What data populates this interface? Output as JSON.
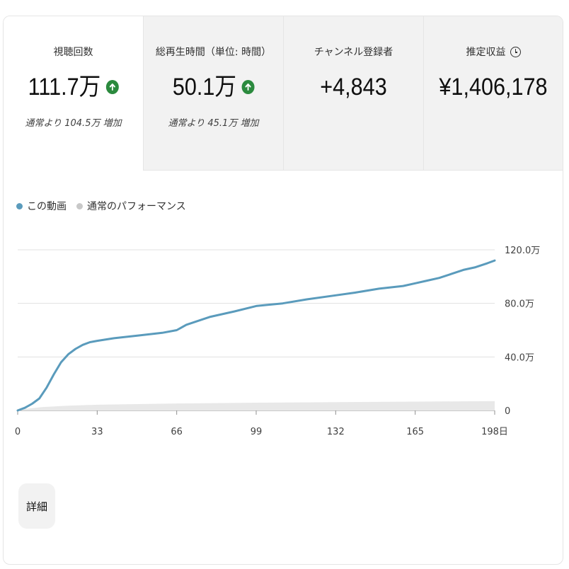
{
  "metrics": [
    {
      "label": "視聴回数",
      "value": "111.7万",
      "sub": "通常より 104.5万 増加",
      "trend": "up"
    },
    {
      "label": "総再生時間（単位: 時間）",
      "value": "50.1万",
      "sub": "通常より 45.1万 増加",
      "trend": "up"
    },
    {
      "label": "チャンネル登録者",
      "value": "+4,843",
      "sub": ""
    },
    {
      "label": "推定収益",
      "value": "¥1,406,178",
      "sub": "",
      "icon": "clock-icon"
    }
  ],
  "legend": [
    {
      "label": "この動画",
      "color": "#5a9bbc"
    },
    {
      "label": "通常のパフォーマンス",
      "color": "#c8c8c8"
    }
  ],
  "detail_label": "詳細",
  "colors": {
    "up": "#2b8a3e",
    "line": "#5a9bbc",
    "typical_band": "#e8e8e8"
  },
  "chart_data": {
    "type": "line",
    "xlabel": "",
    "ylabel": "",
    "xlim": [
      0,
      198
    ],
    "ylim": [
      0,
      120
    ],
    "x_ticks": [
      "0",
      "33",
      "66",
      "99",
      "132",
      "165",
      "198日"
    ],
    "y_ticks": [
      "0",
      "40.0万",
      "80.0万",
      "120.0万"
    ],
    "series": [
      {
        "name": "この動画",
        "x": [
          0,
          3,
          6,
          9,
          12,
          15,
          18,
          21,
          24,
          27,
          30,
          33,
          40,
          50,
          60,
          66,
          70,
          80,
          90,
          99,
          110,
          120,
          132,
          140,
          150,
          160,
          165,
          170,
          175,
          180,
          185,
          190,
          195,
          198
        ],
        "values": [
          0,
          2,
          5,
          9,
          17,
          27,
          36,
          42,
          46,
          49,
          51,
          52,
          54,
          56,
          58,
          60,
          64,
          70,
          74,
          78,
          80,
          83,
          86,
          88,
          91,
          93,
          95,
          97,
          99,
          102,
          105,
          107,
          110,
          112
        ]
      },
      {
        "name": "通常のパフォーマンス",
        "x": [
          0,
          5,
          10,
          20,
          33,
          66,
          99,
          132,
          165,
          198
        ],
        "values": [
          0.5,
          1.5,
          2.5,
          3.5,
          4.3,
          5.2,
          5.8,
          6.2,
          6.6,
          7.0
        ]
      }
    ]
  }
}
